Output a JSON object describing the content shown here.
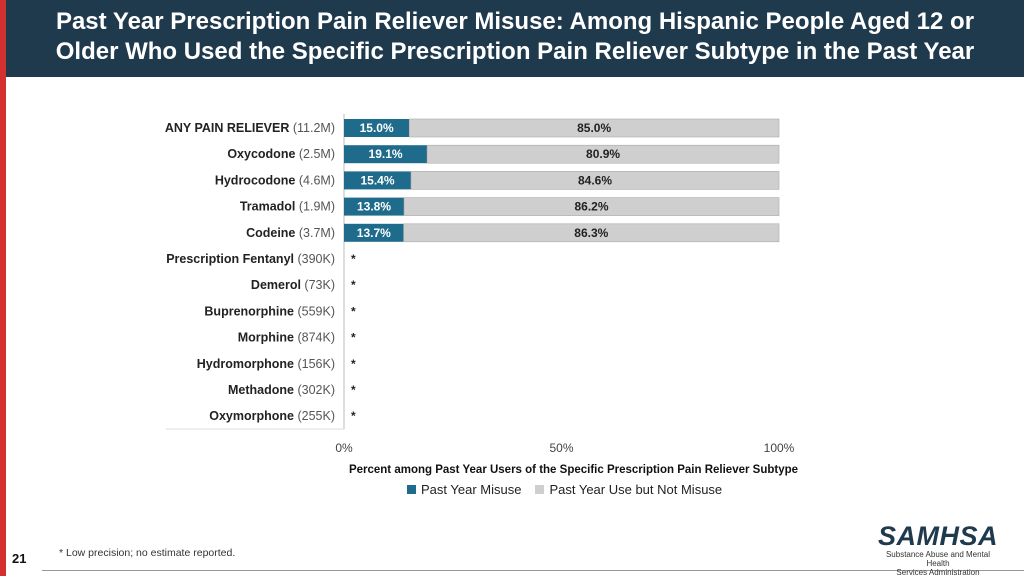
{
  "header": {
    "title_line1": "Past Year Prescription Pain Reliever Misuse: Among Hispanic People Aged 12 or",
    "title_line2": "Older Who Used the Specific Prescription Pain Reliever Subtype in the Past Year"
  },
  "chart_data": {
    "type": "bar",
    "orientation": "horizontal",
    "stacked": true,
    "categories": [
      {
        "name": "ANY PAIN RELIEVER",
        "count": "(11.2M)",
        "misuse": 15.0,
        "misuse_label": "15.0%",
        "not_misuse": 85.0,
        "not_misuse_label": "85.0%"
      },
      {
        "name": "Oxycodone",
        "count": "(2.5M)",
        "misuse": 19.1,
        "misuse_label": "19.1%",
        "not_misuse": 80.9,
        "not_misuse_label": "80.9%"
      },
      {
        "name": "Hydrocodone",
        "count": "(4.6M)",
        "misuse": 15.4,
        "misuse_label": "15.4%",
        "not_misuse": 84.6,
        "not_misuse_label": "84.6%"
      },
      {
        "name": "Tramadol",
        "count": "(1.9M)",
        "misuse": 13.8,
        "misuse_label": "13.8%",
        "not_misuse": 86.2,
        "not_misuse_label": "86.2%"
      },
      {
        "name": "Codeine",
        "count": "(3.7M)",
        "misuse": 13.7,
        "misuse_label": "13.7%",
        "not_misuse": 86.3,
        "not_misuse_label": "86.3%"
      },
      {
        "name": "Prescription Fentanyl",
        "count": "(390K)",
        "misuse": null,
        "misuse_label": "*",
        "not_misuse": null,
        "not_misuse_label": ""
      },
      {
        "name": "Demerol",
        "count": "(73K)",
        "misuse": null,
        "misuse_label": "*",
        "not_misuse": null,
        "not_misuse_label": ""
      },
      {
        "name": "Buprenorphine",
        "count": "(559K)",
        "misuse": null,
        "misuse_label": "*",
        "not_misuse": null,
        "not_misuse_label": ""
      },
      {
        "name": "Morphine",
        "count": "(874K)",
        "misuse": null,
        "misuse_label": "*",
        "not_misuse": null,
        "not_misuse_label": ""
      },
      {
        "name": "Hydromorphone",
        "count": "(156K)",
        "misuse": null,
        "misuse_label": "*",
        "not_misuse": null,
        "not_misuse_label": ""
      },
      {
        "name": "Methadone",
        "count": "(302K)",
        "misuse": null,
        "misuse_label": "*",
        "not_misuse": null,
        "not_misuse_label": ""
      },
      {
        "name": "Oxymorphone",
        "count": "(255K)",
        "misuse": null,
        "misuse_label": "*",
        "not_misuse": null,
        "not_misuse_label": ""
      }
    ],
    "series": [
      {
        "name": "Past Year Misuse",
        "color": "#1e6b8c"
      },
      {
        "name": "Past Year Use but Not Misuse",
        "color": "#cfcfcf"
      }
    ],
    "xlim": [
      0,
      100
    ],
    "xticks": [
      "0%",
      "50%",
      "100%"
    ],
    "xlabel": "Percent among Past Year Users of the Specific Prescription Pain Reliever Subtype",
    "legend_position": "bottom"
  },
  "footnote": "* Low precision; no estimate reported.",
  "page_number": "21",
  "logo": {
    "wordmark": "SAMHSA",
    "subtitle_line1": "Substance Abuse and Mental Health",
    "subtitle_line2": "Services Administration"
  }
}
